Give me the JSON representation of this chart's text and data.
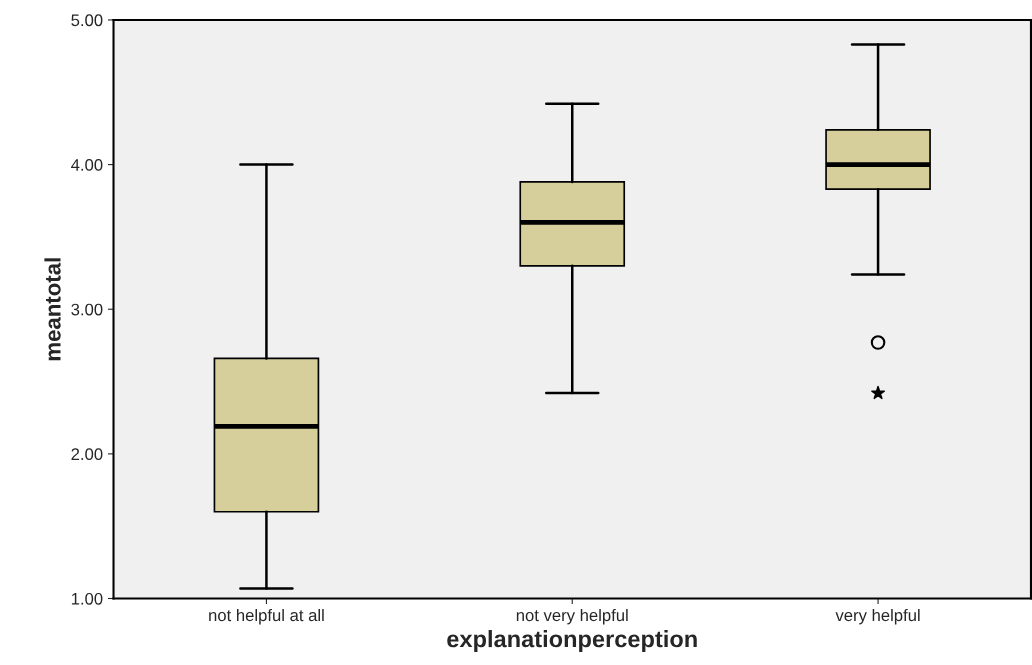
{
  "chart_data": {
    "type": "box",
    "xlabel": "explanationperception",
    "ylabel": "meantotal",
    "categories": [
      "not helpful at all",
      "not very helpful",
      "very helpful"
    ],
    "boxes": [
      {
        "low": 1.07,
        "q1": 1.6,
        "median": 2.19,
        "q3": 2.66,
        "high": 4.0
      },
      {
        "low": 2.42,
        "q1": 3.3,
        "median": 3.6,
        "q3": 3.88,
        "high": 4.42
      },
      {
        "low": 3.24,
        "q1": 3.83,
        "median": 4.0,
        "q3": 4.24,
        "high": 4.83,
        "outliers": [
          2.77
        ]
      }
    ],
    "color": "#d6cf9c",
    "series": [
      {
        "type": "scatter",
        "x": [
          "very helpful"
        ],
        "values": [
          2.42
        ],
        "color": "#000000",
        "marker": "star"
      }
    ],
    "ylim": [
      1.0,
      5.0
    ],
    "yticks": [
      {
        "value": 1.0,
        "label": "1.00"
      },
      {
        "value": 2.0,
        "label": "2.00"
      },
      {
        "value": 3.0,
        "label": "3.00"
      },
      {
        "value": 4.0,
        "label": "4.00"
      },
      {
        "value": 5.0,
        "label": "5.00"
      }
    ],
    "grid": false,
    "legend": false
  }
}
